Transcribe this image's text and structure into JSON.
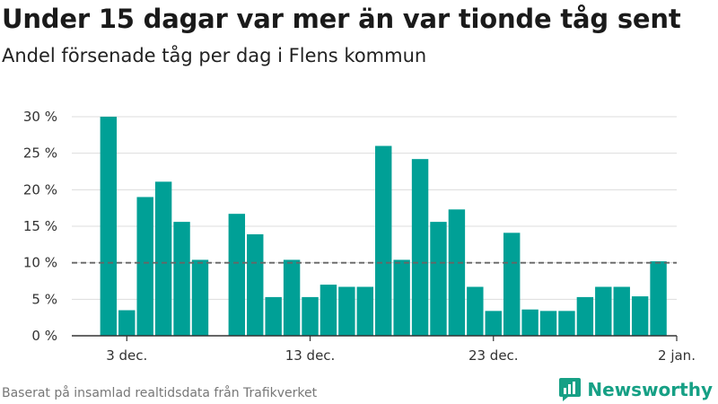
{
  "title": "Under 15 dagar var mer än var tionde tåg sent",
  "subtitle": "Andel försenade tåg per dag i Flens kommun",
  "source": "Baserat på insamlad realtidsdata från Trafikverket",
  "brand": {
    "name": "Newsworthy",
    "icon": "bar-chart-logo-icon",
    "color": "#16a085"
  },
  "colors": {
    "bar": "#00a096",
    "grid": "#dddddd",
    "reference": "#666666",
    "axis": "#333333"
  },
  "chart_data": {
    "type": "bar",
    "x": [
      "2023-12-02",
      "2023-12-03",
      "2023-12-04",
      "2023-12-05",
      "2023-12-06",
      "2023-12-07",
      "2023-12-08",
      "2023-12-09",
      "2023-12-10",
      "2023-12-11",
      "2023-12-12",
      "2023-12-13",
      "2023-12-14",
      "2023-12-15",
      "2023-12-16",
      "2023-12-17",
      "2023-12-18",
      "2023-12-19",
      "2023-12-20",
      "2023-12-21",
      "2023-12-22",
      "2023-12-23",
      "2023-12-24",
      "2023-12-25",
      "2023-12-26",
      "2023-12-27",
      "2023-12-28",
      "2023-12-29",
      "2023-12-30",
      "2023-12-31",
      "2024-01-01"
    ],
    "values": [
      30,
      3.5,
      19,
      21.1,
      15.6,
      10.4,
      null,
      16.7,
      13.9,
      5.3,
      10.4,
      5.3,
      7,
      6.7,
      6.7,
      26,
      10.4,
      24.2,
      15.6,
      17.3,
      6.7,
      3.4,
      14.1,
      3.6,
      3.4,
      3.4,
      5.3,
      6.7,
      6.7,
      5.4,
      10.2
    ],
    "xlim": [
      "2023-11-30",
      "2024-01-02"
    ],
    "xticks": [
      {
        "date": "2023-12-03",
        "label": "3 dec."
      },
      {
        "date": "2023-12-13",
        "label": "13 dec."
      },
      {
        "date": "2023-12-23",
        "label": "23 dec."
      },
      {
        "date": "2024-01-02",
        "label": "2 jan."
      }
    ],
    "ylim": [
      0,
      30
    ],
    "yticks": [
      {
        "value": 0,
        "label": "0 %"
      },
      {
        "value": 5,
        "label": "5 %"
      },
      {
        "value": 10,
        "label": "10 %"
      },
      {
        "value": 15,
        "label": "15 %"
      },
      {
        "value": 20,
        "label": "20 %"
      },
      {
        "value": 25,
        "label": "25 %"
      },
      {
        "value": 30,
        "label": "30 %"
      }
    ],
    "reference_line": {
      "value": 10,
      "style": "dashed"
    },
    "grid": true
  }
}
